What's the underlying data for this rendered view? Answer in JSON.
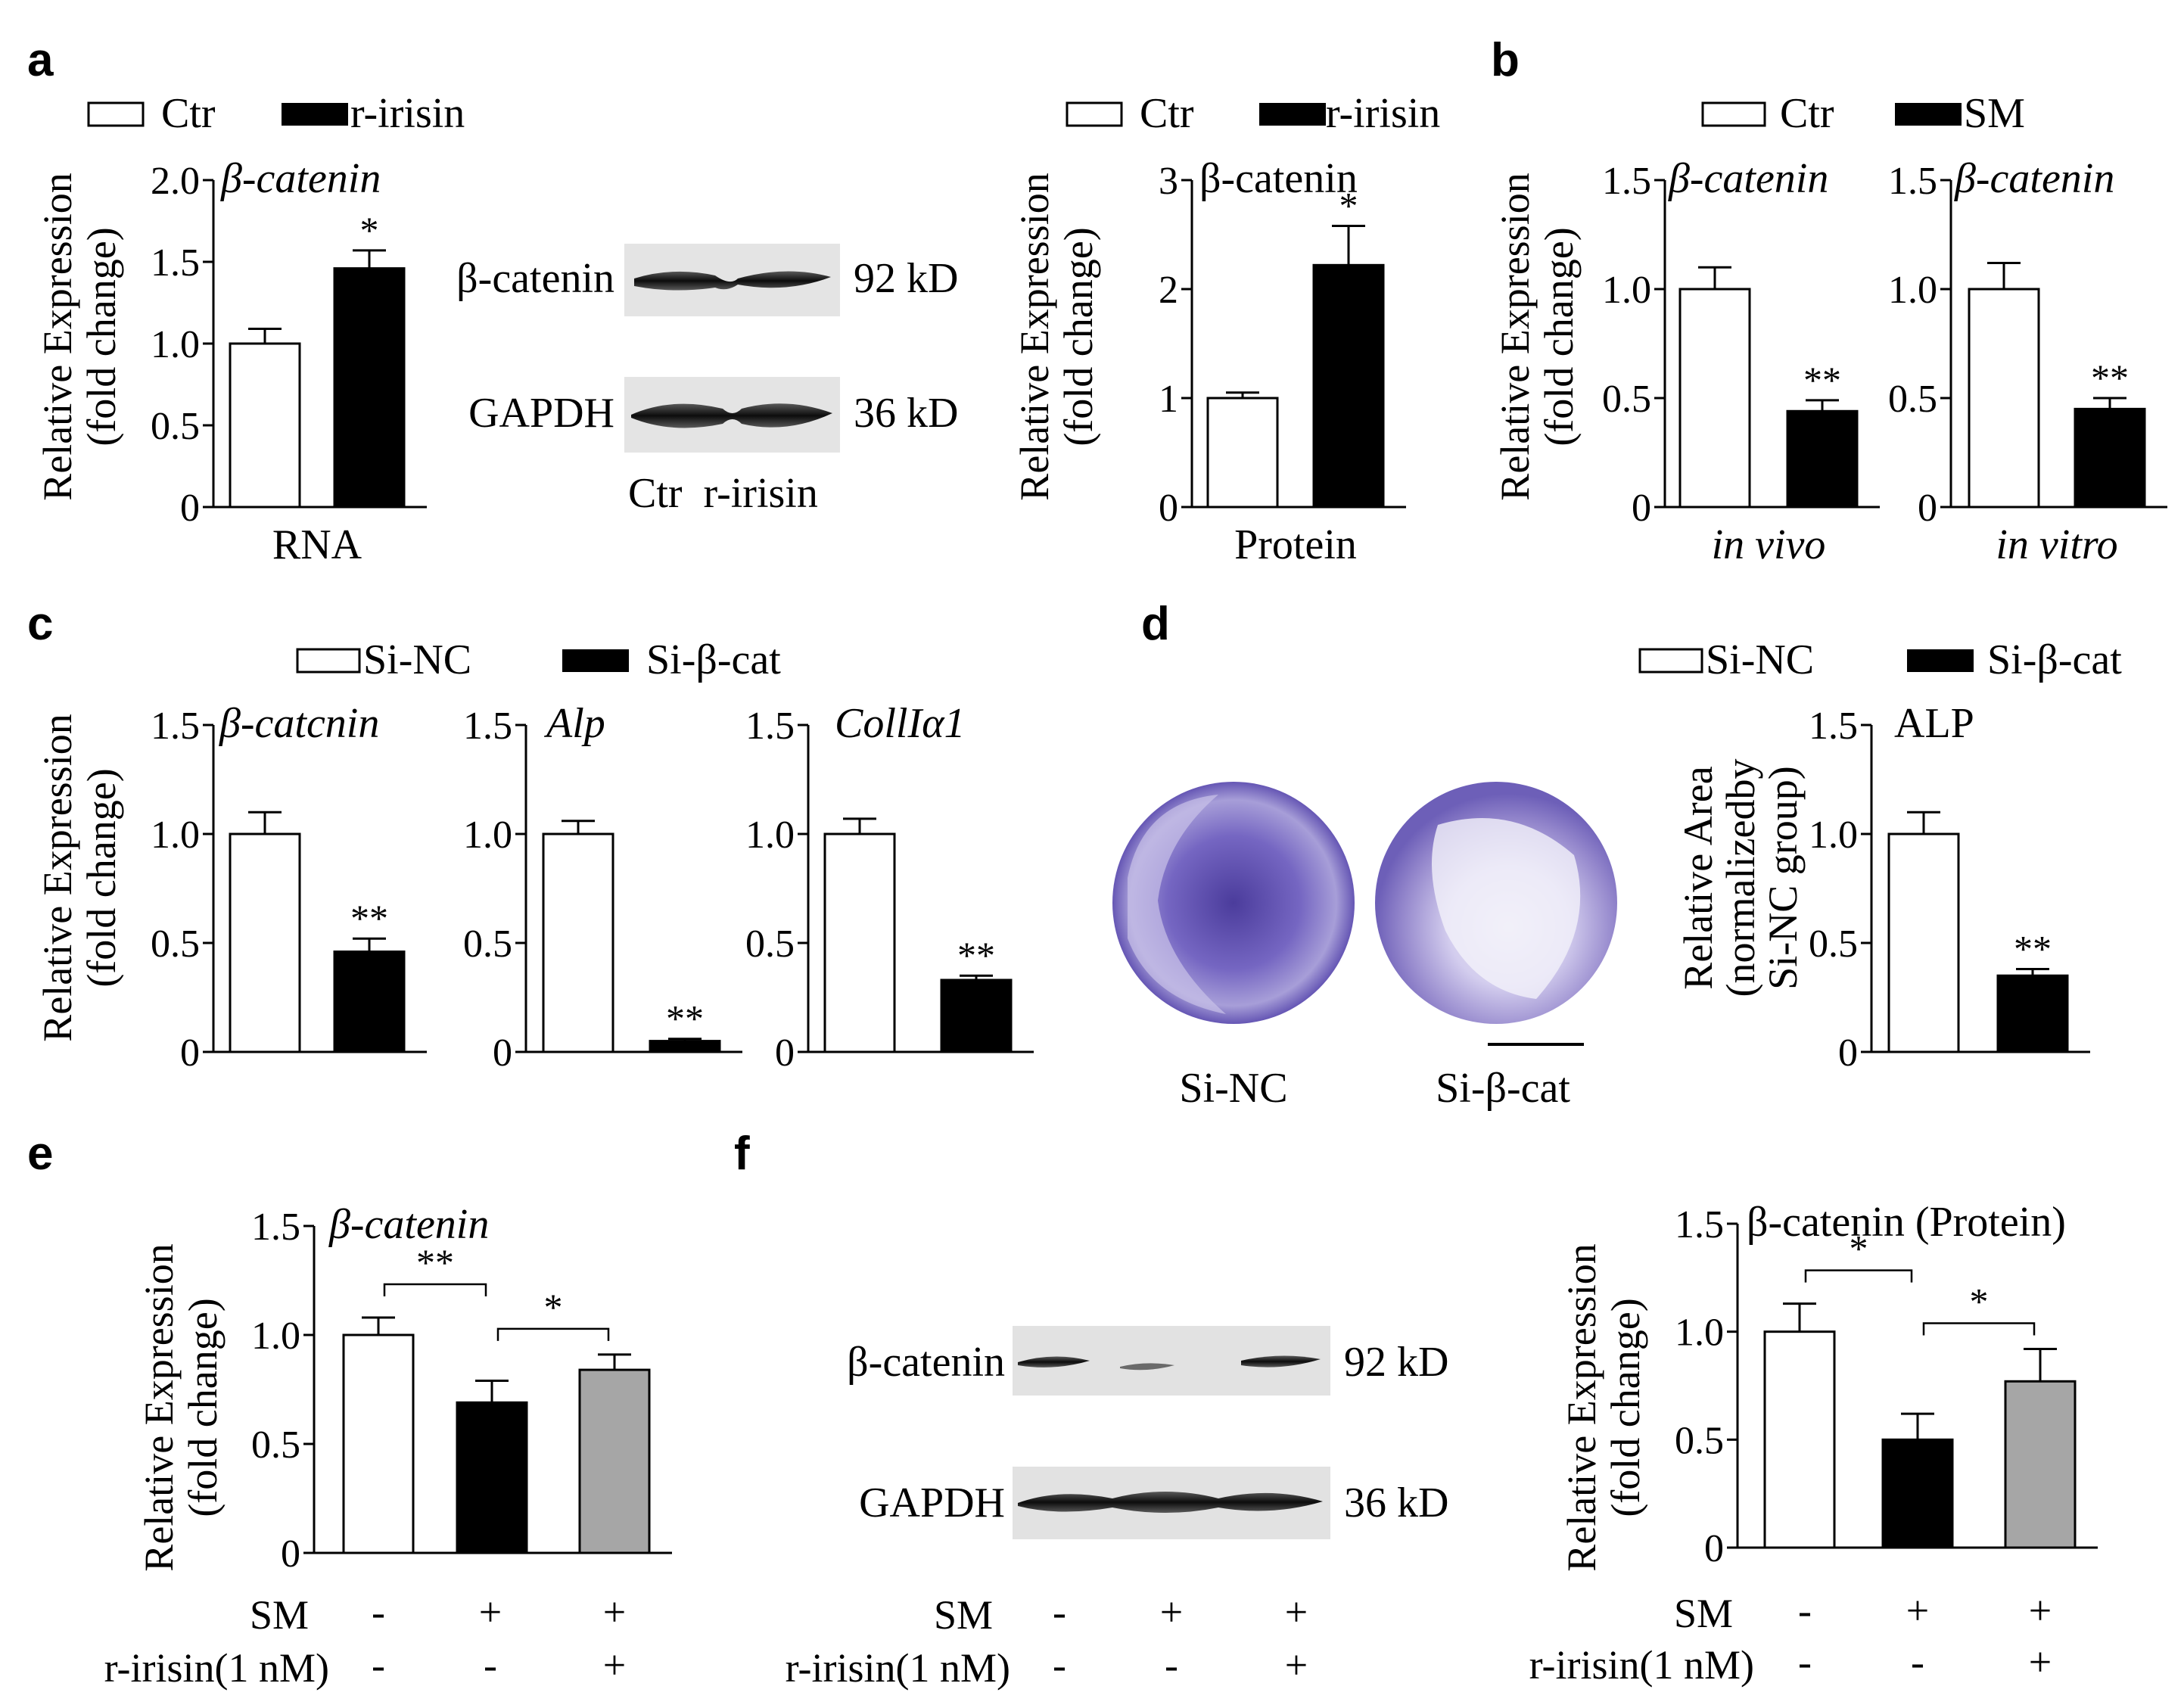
{
  "panel_labels": [
    "a",
    "b",
    "c",
    "d",
    "e",
    "f"
  ],
  "colors": {
    "ctr": "#ffffff",
    "treat": "#000000",
    "third": "#a6a6a6",
    "stain": "#6a5cb8"
  },
  "ylabel_fold": [
    "Relative Expression",
    "(fold change)"
  ],
  "ylabel_area": [
    "Relative Area",
    "(normalizedby",
    "Si-NC group)"
  ],
  "legend_a": [
    "Ctr",
    "r-irisin"
  ],
  "legend_b": [
    "Ctr",
    "SM"
  ],
  "legend_cd": [
    "Si-NC",
    "Si-β-cat"
  ],
  "western_a": {
    "bands": [
      "β-catenin",
      "GAPDH"
    ],
    "sizes": [
      "92 kD",
      "36 kD"
    ],
    "lanes": "Ctr  r-irisin"
  },
  "western_f": {
    "bands": [
      "β-catenin",
      "GAPDH"
    ],
    "sizes": [
      "92 kD",
      "36 kD"
    ]
  },
  "plate_labels": [
    "Si-NC",
    "Si-β-cat"
  ],
  "condition_rows": {
    "row1_label": "SM",
    "row1": [
      "-",
      "+",
      "+"
    ],
    "row2_label": "r-irisin(1 nM)",
    "row2": [
      "-",
      "-",
      "+"
    ]
  },
  "chart_data": [
    {
      "id": "a_rna",
      "type": "bar",
      "title": "β-catenin",
      "title_italic": true,
      "xlabel": "RNA",
      "ylim": [
        0,
        2.0
      ],
      "yticks": [
        "0",
        "0.5",
        "1.0",
        "1.5",
        "2.0"
      ],
      "categories": [
        "Ctr",
        "r-irisin"
      ],
      "values": [
        1.0,
        1.46
      ],
      "errors": [
        0.09,
        0.11
      ],
      "sig": [
        "",
        "*"
      ]
    },
    {
      "id": "a_protein",
      "type": "bar",
      "title": "β-catenin",
      "title_italic": false,
      "xlabel": "Protein",
      "ylim": [
        0,
        3
      ],
      "yticks": [
        "0",
        "1",
        "2",
        "3"
      ],
      "categories": [
        "Ctr",
        "r-irisin"
      ],
      "values": [
        1.0,
        2.22
      ],
      "errors": [
        0.05,
        0.36
      ],
      "sig": [
        "",
        "*"
      ]
    },
    {
      "id": "b_vivo",
      "type": "bar",
      "title": "β-catenin",
      "title_italic": true,
      "xlabel": "in vivo",
      "xlabel_italic": true,
      "ylim": [
        0,
        1.5
      ],
      "yticks": [
        "0",
        "0.5",
        "1.0",
        "1.5"
      ],
      "categories": [
        "Ctr",
        "SM"
      ],
      "values": [
        1.0,
        0.44
      ],
      "errors": [
        0.1,
        0.05
      ],
      "sig": [
        "",
        "**"
      ]
    },
    {
      "id": "b_vitro",
      "type": "bar",
      "title": "β-catenin",
      "title_italic": true,
      "xlabel": "in vitro",
      "xlabel_italic": true,
      "ylim": [
        0,
        1.5
      ],
      "yticks": [
        "0",
        "0.5",
        "1.0",
        "1.5"
      ],
      "categories": [
        "Ctr",
        "SM"
      ],
      "values": [
        1.0,
        0.45
      ],
      "errors": [
        0.12,
        0.05
      ],
      "sig": [
        "",
        "**"
      ]
    },
    {
      "id": "c_bcat",
      "type": "bar",
      "title": "β-catcnin",
      "title_italic": true,
      "ylim": [
        0,
        1.5
      ],
      "yticks": [
        "0",
        "0.5",
        "1.0",
        "1.5"
      ],
      "categories": [
        "Si-NC",
        "Si-β-cat"
      ],
      "values": [
        1.0,
        0.46
      ],
      "errors": [
        0.1,
        0.06
      ],
      "sig": [
        "",
        "**"
      ]
    },
    {
      "id": "c_alp",
      "type": "bar",
      "title": "Alp",
      "title_italic": true,
      "ylim": [
        0,
        1.5
      ],
      "yticks": [
        "0",
        "0.5",
        "1.0",
        "1.5"
      ],
      "categories": [
        "Si-NC",
        "Si-β-cat"
      ],
      "values": [
        1.0,
        0.05
      ],
      "errors": [
        0.06,
        0.01
      ],
      "sig": [
        "",
        "**"
      ]
    },
    {
      "id": "c_col",
      "type": "bar",
      "title": "CollIα1",
      "title_italic": true,
      "ylim": [
        0,
        1.5
      ],
      "yticks": [
        "0",
        "0.5",
        "1.0",
        "1.5"
      ],
      "categories": [
        "Si-NC",
        "Si-β-cat"
      ],
      "values": [
        1.0,
        0.33
      ],
      "errors": [
        0.07,
        0.02
      ],
      "sig": [
        "",
        "**"
      ]
    },
    {
      "id": "d_alp",
      "type": "bar",
      "title": "ALP",
      "title_italic": false,
      "ylim": [
        0,
        1.5
      ],
      "yticks": [
        "0",
        "0.5",
        "1.0",
        "1.5"
      ],
      "categories": [
        "Si-NC",
        "Si-β-cat"
      ],
      "values": [
        1.0,
        0.35
      ],
      "errors": [
        0.1,
        0.03
      ],
      "sig": [
        "",
        "**"
      ]
    },
    {
      "id": "e_bcat",
      "type": "bar",
      "title": "β-catenin",
      "title_italic": true,
      "ylim": [
        0,
        1.5
      ],
      "yticks": [
        "0",
        "0.5",
        "1.0",
        "1.5"
      ],
      "categories": [
        "SM-/r-irisin-",
        "SM+/r-irisin-",
        "SM+/r-irisin+"
      ],
      "values": [
        1.0,
        0.69,
        0.84
      ],
      "errors": [
        0.08,
        0.1,
        0.07
      ],
      "brackets": [
        {
          "from": 0,
          "to": 1,
          "label": "**"
        },
        {
          "from": 1,
          "to": 2,
          "label": "*"
        }
      ]
    },
    {
      "id": "f_bcat",
      "type": "bar",
      "title": "β-catenin (Protein)",
      "title_italic": false,
      "ylim": [
        0,
        1.5
      ],
      "yticks": [
        "0",
        "0.5",
        "1.0",
        "1.5"
      ],
      "categories": [
        "SM-/r-irisin-",
        "SM+/r-irisin-",
        "SM+/r-irisin+"
      ],
      "values": [
        1.0,
        0.5,
        0.77
      ],
      "errors": [
        0.13,
        0.12,
        0.15
      ],
      "brackets": [
        {
          "from": 0,
          "to": 1,
          "label": "*"
        },
        {
          "from": 1,
          "to": 2,
          "label": "*"
        }
      ]
    }
  ]
}
